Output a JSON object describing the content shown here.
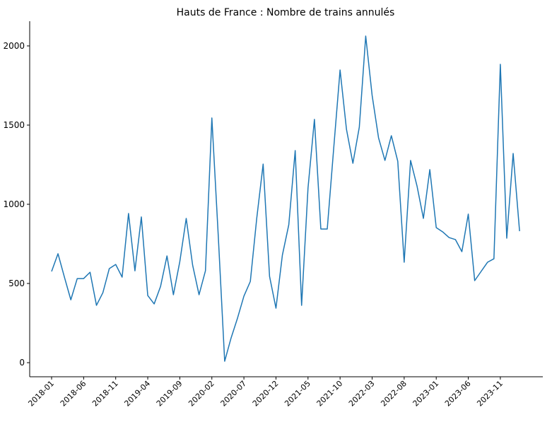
{
  "chart_data": {
    "type": "line",
    "title": "Hauts de France : Nombre de trains annulés",
    "x": [
      "2018-01",
      "2018-02",
      "2018-03",
      "2018-04",
      "2018-05",
      "2018-06",
      "2018-07",
      "2018-08",
      "2018-09",
      "2018-10",
      "2018-11",
      "2018-12",
      "2019-01",
      "2019-02",
      "2019-03",
      "2019-04",
      "2019-05",
      "2019-06",
      "2019-07",
      "2019-08",
      "2019-09",
      "2019-10",
      "2019-11",
      "2019-12",
      "2020-01",
      "2020-02",
      "2020-03",
      "2020-04",
      "2020-05",
      "2020-06",
      "2020-07",
      "2020-08",
      "2020-09",
      "2020-10",
      "2020-11",
      "2020-12",
      "2021-01",
      "2021-02",
      "2021-03",
      "2021-04",
      "2021-05",
      "2021-06",
      "2021-07",
      "2021-08",
      "2021-09",
      "2021-10",
      "2021-11",
      "2021-12",
      "2022-01",
      "2022-02",
      "2022-03",
      "2022-04",
      "2022-05",
      "2022-06",
      "2022-07",
      "2022-08",
      "2022-09",
      "2022-10",
      "2022-11",
      "2022-12",
      "2023-01",
      "2023-02",
      "2023-03",
      "2023-04",
      "2023-05",
      "2023-06",
      "2023-07",
      "2023-08",
      "2023-09",
      "2023-10",
      "2023-11",
      "2023-12",
      "2024-01",
      "2024-02"
    ],
    "series": [
      {
        "color": "#1f77b4",
        "values": [
          576,
          688,
          540,
          397,
          531,
          531,
          571,
          362,
          442,
          594,
          620,
          540,
          942,
          580,
          920,
          424,
          371,
          482,
          674,
          429,
          638,
          911,
          616,
          429,
          580,
          1545,
          800,
          9,
          156,
          281,
          420,
          513,
          911,
          1254,
          545,
          344,
          679,
          871,
          1339,
          362,
          1103,
          1536,
          844,
          844,
          1350,
          1848,
          1473,
          1259,
          1487,
          2062,
          1688,
          1420,
          1277,
          1433,
          1272,
          634,
          1277,
          1116,
          911,
          1219,
          853,
          826,
          790,
          777,
          701,
          938,
          518,
          576,
          634,
          656,
          1884,
          786,
          1321,
          830
        ]
      }
    ],
    "xticks": [
      "2018-01",
      "2018-06",
      "2018-11",
      "2019-04",
      "2019-09",
      "2020-02",
      "2020-07",
      "2020-12",
      "2021-05",
      "2021-10",
      "2022-03",
      "2022-08",
      "2023-01",
      "2023-06",
      "2023-11"
    ],
    "ylim": [
      -89,
      2156
    ],
    "yticks": [
      0,
      500,
      1000,
      1500,
      2000
    ],
    "grid": false
  }
}
